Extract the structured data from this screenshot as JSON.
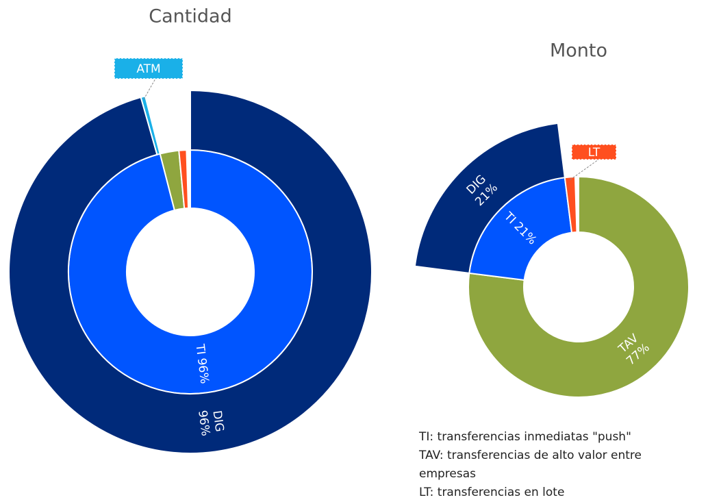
{
  "chart_data": [
    {
      "type": "sunburst",
      "title": "Cantidad",
      "categories": [
        "TI",
        null,
        null
      ],
      "values": [
        96,
        2.5,
        1
      ],
      "value_labels": [
        "96%",
        null,
        null
      ],
      "colors": [
        "#0055ff",
        "#8fa63f",
        "#ff4f1f"
      ],
      "children": [
        {
          "categories": [
            "DIG",
            "ATM"
          ],
          "values": [
            95.6,
            0.4
          ],
          "value_labels": [
            "96%",
            null
          ],
          "colors": [
            "#002a7a",
            "#1ab0e8"
          ]
        },
        null,
        null
      ]
    },
    {
      "type": "sunburst",
      "title": "Monto",
      "categories": [
        "TAV",
        "TI",
        "LT"
      ],
      "values": [
        77,
        21,
        1.5
      ],
      "value_labels": [
        "77%",
        "21%",
        null
      ],
      "colors": [
        "#8fa63f",
        "#0055ff",
        "#ff4f1f"
      ],
      "children": [
        null,
        {
          "categories": [
            "DIG"
          ],
          "values": [
            21
          ],
          "value_labels": [
            "21%"
          ],
          "colors": [
            "#002a7a"
          ]
        },
        null
      ]
    }
  ],
  "notes": [
    "TI: transferencias inmediatas \"push\"",
    "TAV: transferencias de alto valor entre",
    "empresas",
    "LT: transferencias en lote"
  ]
}
